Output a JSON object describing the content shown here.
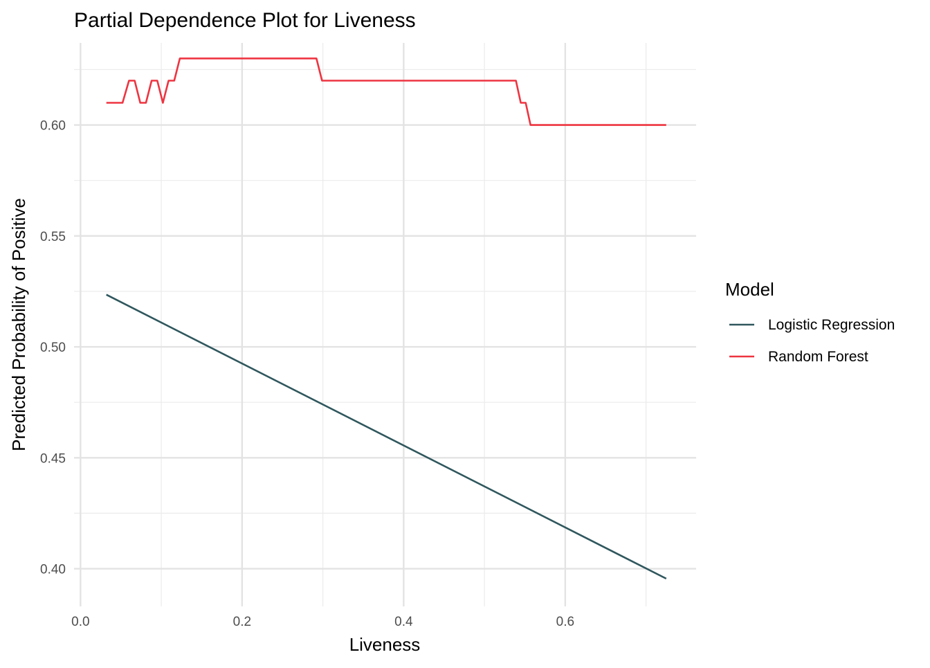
{
  "chart_data": {
    "type": "line",
    "title": "Partial Dependence Plot for Liveness",
    "xlabel": "Liveness",
    "ylabel": "Predicted Probability of Positive",
    "xlim": [
      -0.008,
      0.762
    ],
    "ylim": [
      0.383,
      0.637
    ],
    "x_ticks": [
      0.0,
      0.2,
      0.4,
      0.6
    ],
    "x_tick_labels": [
      "0.0",
      "0.2",
      "0.4",
      "0.6"
    ],
    "x_minor_ticks": [
      0.1,
      0.3,
      0.5,
      0.7
    ],
    "y_ticks": [
      0.4,
      0.45,
      0.5,
      0.55,
      0.6
    ],
    "y_tick_labels": [
      "0.40",
      "0.45",
      "0.50",
      "0.55",
      "0.60"
    ],
    "y_minor_ticks": [
      0.425,
      0.475,
      0.525,
      0.575,
      0.625
    ],
    "grid": true,
    "legend": {
      "title": "Model",
      "position": "right"
    },
    "series": [
      {
        "name": "Logistic Regression",
        "color": "#2F575D",
        "x": [
          0.032,
          0.725
        ],
        "y": [
          0.5235,
          0.3955
        ]
      },
      {
        "name": "Random Forest",
        "color": "#EE3440",
        "x": [
          0.032,
          0.052,
          0.06,
          0.067,
          0.074,
          0.081,
          0.088,
          0.095,
          0.102,
          0.109,
          0.116,
          0.123,
          0.292,
          0.299,
          0.539,
          0.545,
          0.551,
          0.557,
          0.725
        ],
        "y": [
          0.61,
          0.61,
          0.62,
          0.62,
          0.61,
          0.61,
          0.62,
          0.62,
          0.61,
          0.62,
          0.62,
          0.63,
          0.63,
          0.62,
          0.62,
          0.61,
          0.61,
          0.6,
          0.6
        ]
      }
    ]
  }
}
